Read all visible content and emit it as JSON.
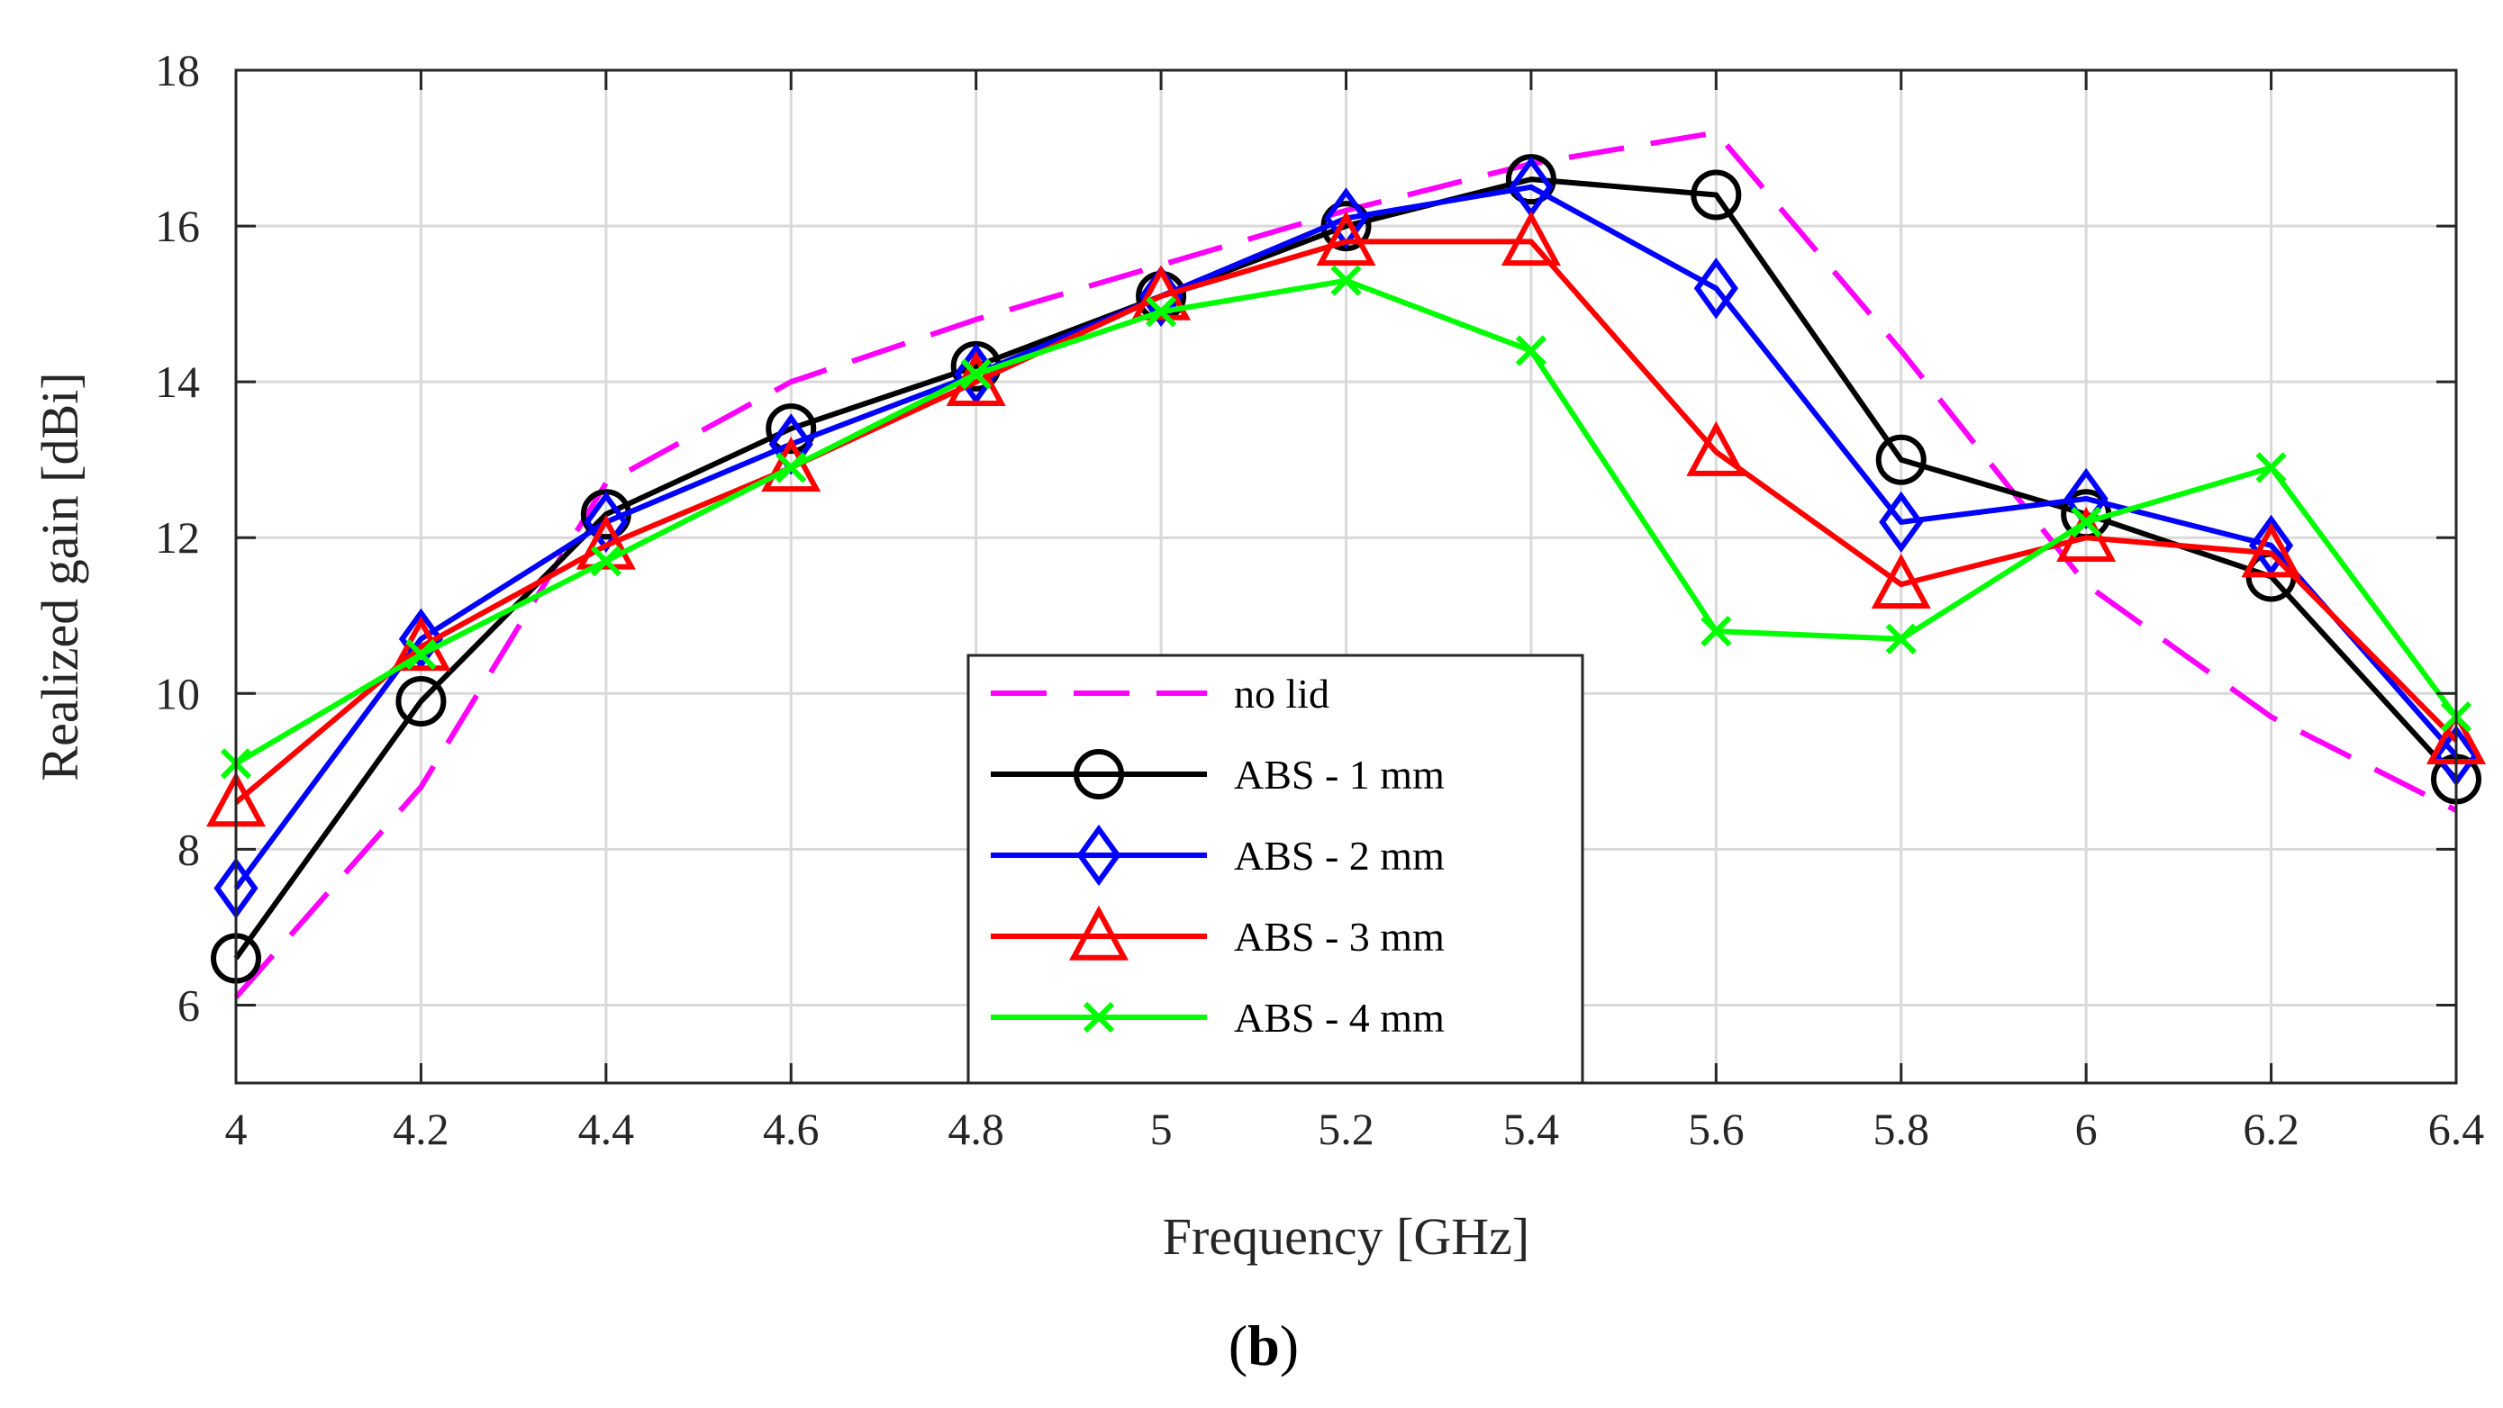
{
  "chart_data": {
    "type": "line",
    "xlabel": "Frequency [GHz]",
    "ylabel": "Realized gain [dBi]",
    "xlim": [
      4,
      6.4
    ],
    "ylim": [
      5,
      18
    ],
    "xticks": [
      4,
      4.2,
      4.4,
      4.6,
      4.8,
      5,
      5.2,
      5.4,
      5.6,
      5.8,
      6,
      6.2,
      6.4
    ],
    "xtick_labels": [
      "4",
      "4.2",
      "4.4",
      "4.6",
      "4.8",
      "5",
      "5.2",
      "5.4",
      "5.6",
      "5.8",
      "6",
      "6.2",
      "6.4"
    ],
    "yticks": [
      6,
      8,
      10,
      12,
      14,
      16,
      18
    ],
    "ytick_labels": [
      "6",
      "8",
      "10",
      "12",
      "14",
      "16",
      "18"
    ],
    "grid": true,
    "legend_position": "bottom-center",
    "panel_label": {
      "open": "(",
      "letter": "b",
      "close": ")"
    },
    "x": [
      4,
      4.2,
      4.4,
      4.6,
      4.8,
      5,
      5.2,
      5.4,
      5.6,
      5.8,
      6,
      6.2,
      6.4
    ],
    "series": [
      {
        "name": "no lid",
        "color": "#ff00ff",
        "dash": true,
        "marker": "none",
        "values": [
          6.1,
          8.8,
          12.7,
          14.0,
          14.8,
          15.5,
          16.2,
          16.8,
          17.2,
          14.4,
          11.4,
          9.7,
          8.5
        ]
      },
      {
        "name": "ABS - 1 mm",
        "color": "#000000",
        "dash": false,
        "marker": "circle",
        "values": [
          6.6,
          9.9,
          12.3,
          13.4,
          14.2,
          15.1,
          16.0,
          16.6,
          16.4,
          13.0,
          12.3,
          11.5,
          8.9
        ]
      },
      {
        "name": "ABS - 2 mm",
        "color": "#0000ff",
        "dash": false,
        "marker": "diamond",
        "values": [
          7.5,
          10.7,
          12.2,
          13.2,
          14.1,
          15.1,
          16.1,
          16.5,
          15.2,
          12.2,
          12.5,
          11.9,
          9.2
        ]
      },
      {
        "name": "ABS - 3 mm",
        "color": "#ff0000",
        "dash": false,
        "marker": "triangle",
        "values": [
          8.6,
          10.6,
          11.9,
          12.9,
          14.0,
          15.1,
          15.8,
          15.8,
          13.1,
          11.4,
          12.0,
          11.8,
          9.4
        ]
      },
      {
        "name": "ABS - 4 mm",
        "color": "#00ff00",
        "dash": false,
        "marker": "x",
        "values": [
          9.1,
          10.5,
          11.7,
          12.9,
          14.1,
          14.9,
          15.3,
          14.4,
          10.8,
          10.7,
          12.2,
          12.9,
          9.7
        ]
      }
    ]
  }
}
